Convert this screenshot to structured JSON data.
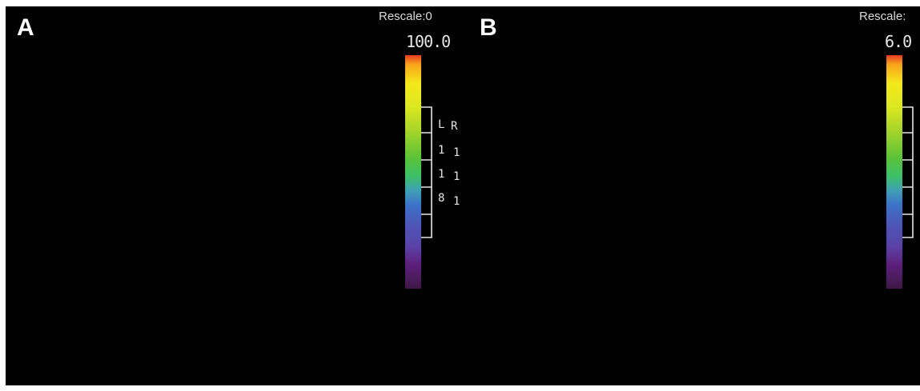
{
  "panels": [
    {
      "letter": "A",
      "rescale_label": "Rescale:0",
      "scale_max": "100.0",
      "columns": [
        {
          "header": "L",
          "values": [
            "1",
            "1",
            "8"
          ]
        },
        {
          "header": "R",
          "values": [
            "1",
            "1",
            "1"
          ]
        }
      ]
    },
    {
      "letter": "B",
      "rescale_label": "Rescale:",
      "scale_max": "6.0"
    }
  ],
  "colors": {
    "background": "#000000",
    "text": "#e6e6e6",
    "colorbar_top": "#e83a22",
    "colorbar_bottom": "#3e1845"
  }
}
